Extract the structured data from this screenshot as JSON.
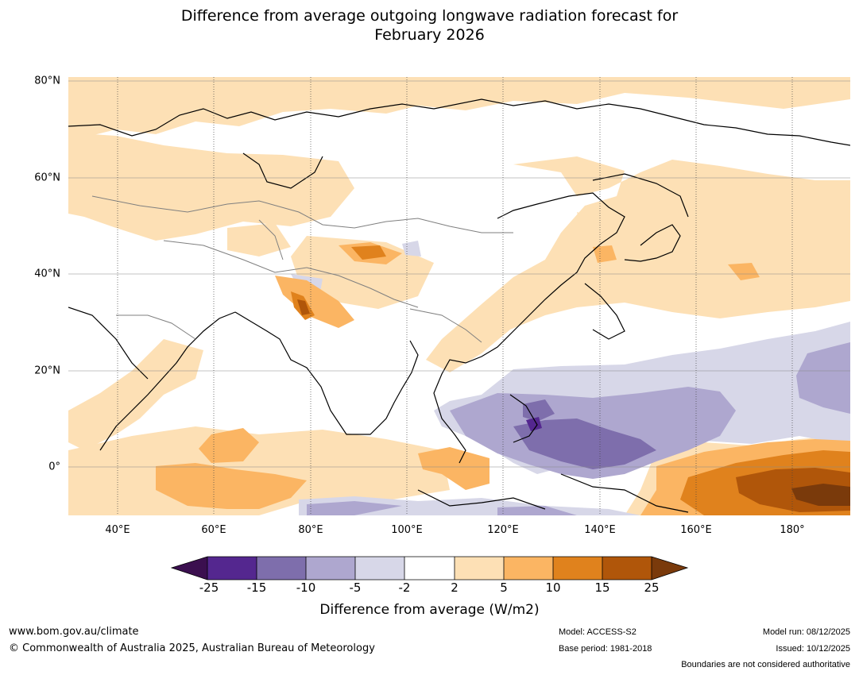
{
  "title": {
    "line1": "Difference from average outgoing longwave radiation forecast for",
    "line2": "February 2026"
  },
  "map": {
    "region": "Asia, Indian Ocean and western Pacific",
    "lat_labels": [
      "80°N",
      "60°N",
      "40°N",
      "20°N",
      "0°"
    ],
    "lon_labels": [
      "40°E",
      "60°E",
      "80°E",
      "100°E",
      "120°E",
      "140°E",
      "160°E",
      "180°"
    ]
  },
  "colorbar": {
    "title": "Difference from average (W/m2)",
    "ticks": [
      "-25",
      "-15",
      "-10",
      "-5",
      "-2",
      "2",
      "5",
      "10",
      "15",
      "25"
    ],
    "colors": {
      "below_min": "#3b0f4f",
      "bins": [
        "#54278f",
        "#7e6eac",
        "#aea7cf",
        "#d7d7e8",
        "#ffffff",
        "#fde0b5",
        "#fbb563",
        "#e0821d",
        "#b0560a"
      ],
      "above_max": "#7a3a0b"
    }
  },
  "footer": {
    "website": "www.bom.gov.au/climate",
    "copyright": "© Commonwealth of Australia 2025, Australian Bureau of Meteorology",
    "model": "Model: ACCESS-S2",
    "base_period": "Base period: 1981-2018",
    "model_run": "Model run: 08/12/2025",
    "issued": "Issued: 10/12/2025",
    "disclaimer": "Boundaries are not considered authoritative"
  }
}
